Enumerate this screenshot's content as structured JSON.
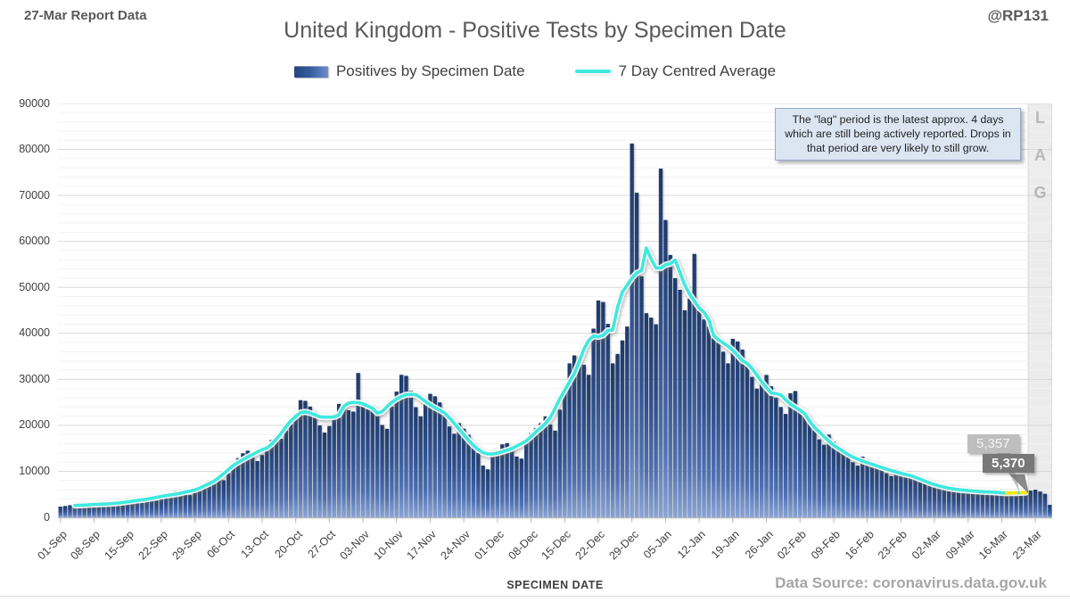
{
  "header": {
    "report_label": "27-Mar Report Data",
    "handle": "@RP131",
    "title": "United Kingdom - Positive Tests by Specimen Date"
  },
  "legend": {
    "bars_label": "Positives by Specimen Date",
    "line_label": "7 Day Centred Average"
  },
  "annotation": {
    "text": "The \"lag\" period is the latest approx. 4 days which are still being actively reported. Drops in that period are very likely to still grow.",
    "lag_label": "LAG"
  },
  "callouts": [
    {
      "label": "5,357",
      "point_index": 200
    },
    {
      "label": "5,370",
      "point_index": 201
    }
  ],
  "axes": {
    "x_title": "SPECIMEN DATE",
    "y_ticks": [
      0,
      10000,
      20000,
      30000,
      40000,
      50000,
      60000,
      70000,
      80000,
      90000
    ],
    "y_minor_step": 2000,
    "x_tick_labels": [
      "01-Sep",
      "08-Sep",
      "15-Sep",
      "22-Sep",
      "29-Sep",
      "06-Oct",
      "13-Oct",
      "20-Oct",
      "27-Oct",
      "03-Nov",
      "10-Nov",
      "17-Nov",
      "24-Nov",
      "01-Dec",
      "08-Dec",
      "15-Dec",
      "22-Dec",
      "29-Dec",
      "05-Jan",
      "12-Jan",
      "19-Jan",
      "26-Jan",
      "02-Feb",
      "09-Feb",
      "16-Feb",
      "23-Feb",
      "02-Mar",
      "09-Mar",
      "16-Mar",
      "23-Mar"
    ]
  },
  "footer": {
    "source": "Data Source: coronavirus.data.gov.uk"
  },
  "chart_data": {
    "type": "bar",
    "title": "United Kingdom - Positive Tests by Specimen Date",
    "xlabel": "SPECIMEN DATE",
    "ylabel": "",
    "ylim": [
      0,
      90000
    ],
    "x_start": "01-Sep",
    "x_end": "26-Mar",
    "x_tick_step_days": 7,
    "legend_position": "top",
    "grid": "horizontal, minor every 2000, major every 10000",
    "series": [
      {
        "name": "Positives by Specimen Date",
        "type": "bar",
        "values": [
          2310,
          2460,
          2620,
          2870,
          2790,
          2530,
          2420,
          2580,
          2840,
          3050,
          3290,
          3180,
          2910,
          2720,
          3100,
          3480,
          3870,
          4180,
          4320,
          3940,
          3650,
          4150,
          4760,
          5310,
          5690,
          5470,
          5020,
          4830,
          5620,
          6420,
          6880,
          7430,
          8190,
          8610,
          8060,
          9570,
          11480,
          12870,
          13920,
          14480,
          13190,
          12240,
          13550,
          15210,
          16830,
          17480,
          17060,
          18860,
          20230,
          22480,
          25470,
          25310,
          24080,
          22950,
          19980,
          18420,
          19840,
          22390,
          24650,
          24210,
          23280,
          22980,
          31380,
          24860,
          23480,
          24260,
          22450,
          20080,
          19240,
          24050,
          27340,
          30980,
          30760,
          27490,
          23950,
          21960,
          24680,
          26850,
          26310,
          24980,
          22360,
          19750,
          18170,
          20480,
          19260,
          17950,
          16150,
          13960,
          11240,
          10420,
          14230,
          14480,
          15860,
          16120,
          15380,
          13210,
          12760,
          16780,
          18350,
          19420,
          20460,
          21930,
          20170,
          18840,
          23420,
          27360,
          33480,
          35210,
          34870,
          33150,
          30980,
          41020,
          47150,
          46820,
          42050,
          33480,
          35520,
          38460,
          41480,
          81290,
          70580,
          52430,
          44380,
          43420,
          41980,
          75830,
          64660,
          57040,
          52010,
          49480,
          45030,
          47520,
          57280,
          45480,
          43010,
          41490,
          38960,
          38520,
          36010,
          33480,
          38810,
          38240,
          36480,
          32960,
          30520,
          27980,
          29480,
          30960,
          28490,
          25960,
          23980,
          22480,
          26980,
          27460,
          23510,
          21980,
          21260,
          19480,
          16950,
          15780,
          17980,
          16480,
          14960,
          14280,
          13450,
          11960,
          11230,
          13180,
          12480,
          11960,
          11470,
          10780,
          9580,
          8960,
          10480,
          10150,
          9680,
          9370,
          8790,
          7760,
          7310,
          7960,
          7180,
          6780,
          6510,
          6180,
          5780,
          5490,
          6280,
          5990,
          5870,
          5690,
          5590,
          5180,
          4890,
          5780,
          5610,
          5500,
          5300,
          5000,
          4700,
          5200,
          5800,
          6000,
          5590,
          5100,
          2700
        ]
      },
      {
        "name": "7 Day Centred Average",
        "type": "line",
        "derivation": "7-day centred mean of the bar series",
        "end_labels": [
          "5,357",
          "5,370"
        ]
      }
    ],
    "highlight": {
      "avg_last_index": 201,
      "yellow_segments": [
        [
          197,
          199
        ],
        [
          200,
          201
        ]
      ],
      "lag_band_start_index": 202
    }
  },
  "colors": {
    "bar_top": "#1d3a6b",
    "bar_mid": "#2f5192",
    "bar_low": "#4e71b4",
    "bar_bottom": "#88a4d8",
    "avg_line": "#3fe9df",
    "highlight_yellow": "#ffe600",
    "lag_band": "#ececec",
    "grid_major": "#d9d9d9",
    "grid_minor": "#f2f2f2",
    "axis": "#b7b7b7",
    "annotation_bg": "#dce6f2",
    "title_gray": "#595959"
  }
}
